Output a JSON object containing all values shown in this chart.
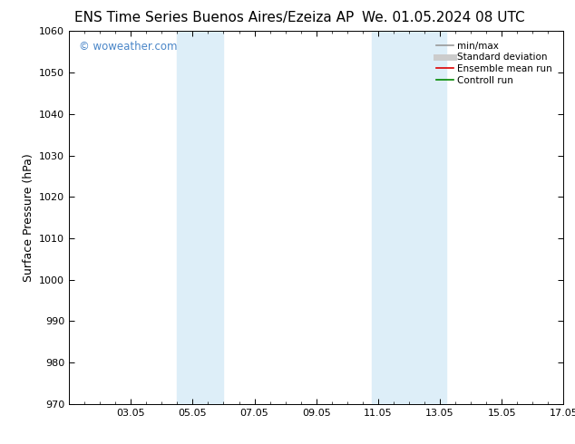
{
  "title_left": "ENS Time Series Buenos Aires/Ezeiza AP",
  "title_right": "We. 01.05.2024 08 UTC",
  "ylabel": "Surface Pressure (hPa)",
  "ylim": [
    970,
    1060
  ],
  "yticks": [
    970,
    980,
    990,
    1000,
    1010,
    1020,
    1030,
    1040,
    1050,
    1060
  ],
  "xlim_start": 1.0,
  "xlim_end": 17.0,
  "xtick_labels": [
    "03.05",
    "05.05",
    "07.05",
    "09.05",
    "11.05",
    "13.05",
    "15.05",
    "17.05"
  ],
  "xtick_positions": [
    3,
    5,
    7,
    9,
    11,
    13,
    15,
    17
  ],
  "shaded_regions": [
    {
      "xmin": 4.5,
      "xmax": 6.0,
      "color": "#ddeef8"
    },
    {
      "xmin": 10.8,
      "xmax": 12.0,
      "color": "#ddeef8"
    },
    {
      "xmin": 12.0,
      "xmax": 13.2,
      "color": "#ddeef8"
    }
  ],
  "watermark_text": "© woweather.com",
  "watermark_color": "#4a86c8",
  "bg_color": "#ffffff",
  "legend_entries": [
    {
      "label": "min/max",
      "color": "#999999",
      "lw": 1.2
    },
    {
      "label": "Standard deviation",
      "color": "#cccccc",
      "lw": 5
    },
    {
      "label": "Ensemble mean run",
      "color": "#dd0000",
      "lw": 1.2
    },
    {
      "label": "Controll run",
      "color": "#008800",
      "lw": 1.2
    }
  ],
  "title_fontsize": 11,
  "axis_label_fontsize": 9,
  "tick_fontsize": 8,
  "legend_fontsize": 7.5
}
